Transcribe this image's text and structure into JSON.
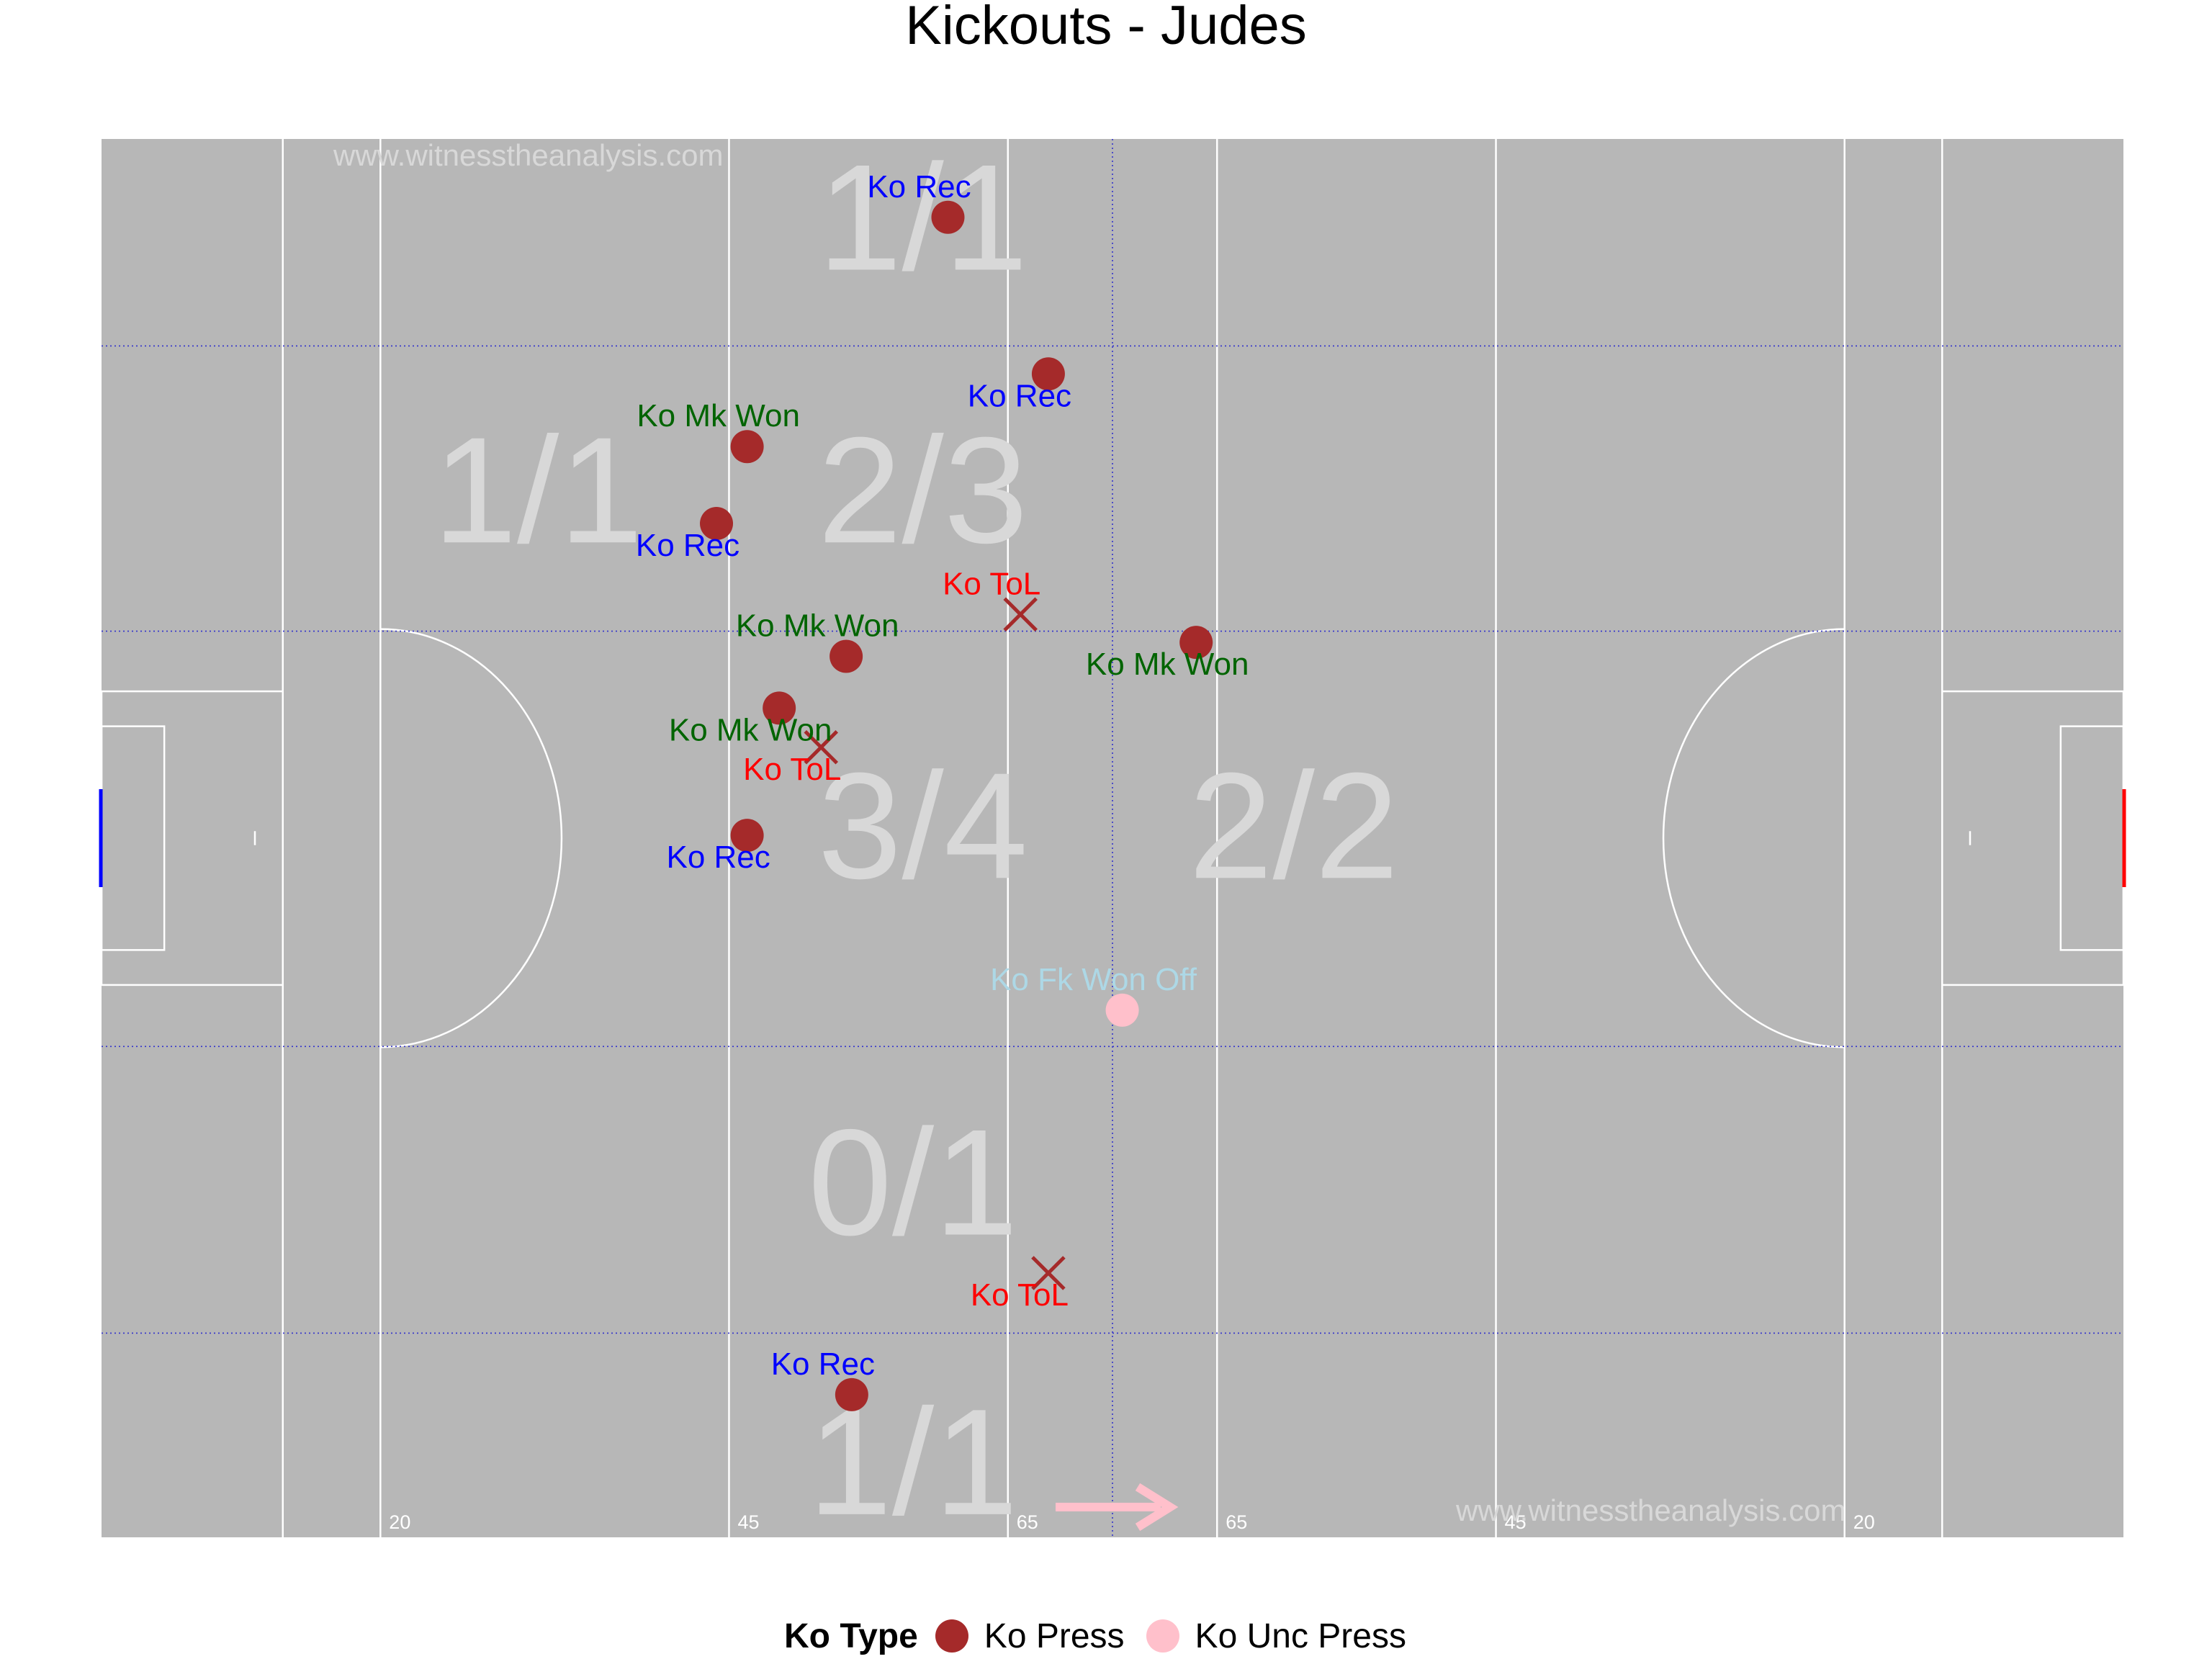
{
  "title": "Kickouts - Judes",
  "watermark": "www.witnesstheanalysis.com",
  "colors": {
    "pitch": "#b7b7b7",
    "line": "#ffffff",
    "grid": "#3333cc",
    "zone_text": "#d8d8d8",
    "ko_press": "#a52a2a",
    "ko_unc_press": "#ffc0cb",
    "label_rec": "#0000ff",
    "label_mk_won": "#006400",
    "label_tol": "#ff0000",
    "label_fk_won_off": "#add8e6",
    "goal_left": "#0000ff",
    "goal_right": "#ff0000",
    "arrow": "#ffc0cb"
  },
  "chart_data": {
    "type": "scatter",
    "title": "Kickouts - Judes",
    "xlim": [
      0,
      145
    ],
    "ylim": [
      0,
      100
    ],
    "distance_labels": [
      {
        "text": "20",
        "x": 20
      },
      {
        "text": "45",
        "x": 45
      },
      {
        "text": "65",
        "x": 65
      },
      {
        "text": "65",
        "x": 80
      },
      {
        "text": "45",
        "x": 100
      },
      {
        "text": "20",
        "x": 125
      }
    ],
    "zones": [
      {
        "label": "1/1",
        "x": 58.9,
        "y": 94.0
      },
      {
        "label": "1/1",
        "x": 31.3,
        "y": 74.5
      },
      {
        "label": "2/3",
        "x": 58.9,
        "y": 74.5
      },
      {
        "label": "3/4",
        "x": 58.9,
        "y": 50.5
      },
      {
        "label": "2/2",
        "x": 85.5,
        "y": 50.5
      },
      {
        "label": "0/1",
        "x": 58.2,
        "y": 25.0
      },
      {
        "label": "1/1",
        "x": 58.2,
        "y": 5.0
      }
    ],
    "legend": {
      "title": "Ko Type",
      "items": [
        {
          "label": "Ko Press",
          "color": "#a52a2a"
        },
        {
          "label": "Ko Unc Press",
          "color": "#ffc0cb"
        }
      ]
    },
    "points": [
      {
        "x": 60.7,
        "y": 94.4,
        "outcome": "Ko Rec",
        "type": "Ko Press",
        "marker": "circle"
      },
      {
        "x": 67.9,
        "y": 83.2,
        "outcome": "Ko Rec",
        "type": "Ko Press",
        "marker": "circle"
      },
      {
        "x": 46.3,
        "y": 78.0,
        "outcome": "Ko Mk Won",
        "type": "Ko Press",
        "marker": "circle"
      },
      {
        "x": 44.1,
        "y": 72.5,
        "outcome": "Ko Rec",
        "type": "Ko Press",
        "marker": "circle"
      },
      {
        "x": 65.9,
        "y": 66.0,
        "outcome": "Ko ToL",
        "type": "Ko Press",
        "marker": "cross"
      },
      {
        "x": 78.5,
        "y": 64.0,
        "outcome": "Ko Mk Won",
        "type": "Ko Press",
        "marker": "circle"
      },
      {
        "x": 53.4,
        "y": 63.0,
        "outcome": "Ko Mk Won",
        "type": "Ko Press",
        "marker": "circle"
      },
      {
        "x": 48.6,
        "y": 59.3,
        "outcome": "Ko Mk Won",
        "type": "Ko Press",
        "marker": "circle"
      },
      {
        "x": 51.6,
        "y": 56.5,
        "outcome": "Ko ToL",
        "type": "Ko Press",
        "marker": "cross"
      },
      {
        "x": 46.3,
        "y": 50.2,
        "outcome": "Ko Rec",
        "type": "Ko Press",
        "marker": "circle"
      },
      {
        "x": 73.2,
        "y": 37.7,
        "outcome": "Ko Fk Won Off",
        "type": "Ko Unc Press",
        "marker": "circle"
      },
      {
        "x": 67.9,
        "y": 18.9,
        "outcome": "Ko ToL",
        "type": "Ko Press",
        "marker": "cross"
      },
      {
        "x": 53.8,
        "y": 10.2,
        "outcome": "Ko Rec",
        "type": "Ko Press",
        "marker": "circle"
      }
    ],
    "grid_lines": {
      "x": [
        72.5
      ],
      "y": [
        14.6,
        35.1,
        64.8,
        85.2
      ]
    },
    "grid": true
  }
}
